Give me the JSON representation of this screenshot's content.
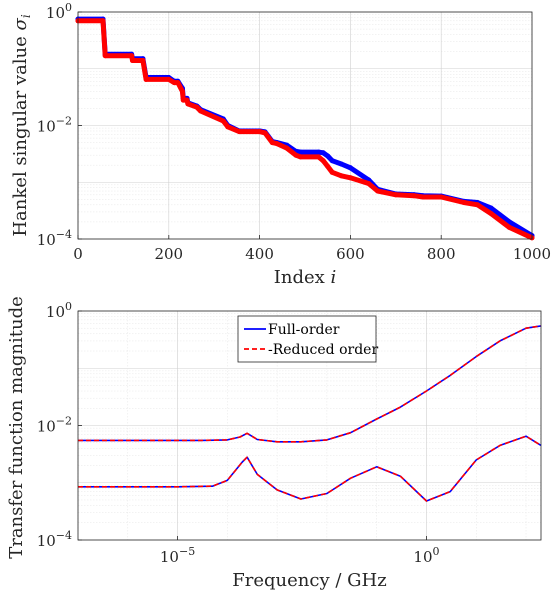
{
  "chart_data": [
    {
      "type": "scatter",
      "xlabel": "Index ",
      "xlabel_var": "i",
      "ylabel": "Hankel singular value ",
      "ylabel_var": "σ",
      "ylabel_sub": "i",
      "xlim": [
        0,
        1000
      ],
      "ylim": [
        0.0001,
        1
      ],
      "yscale": "log",
      "grid": true,
      "xticks": [
        0,
        200,
        400,
        600,
        800,
        1000
      ],
      "xtick_labels": [
        "0",
        "200",
        "400",
        "600",
        "800",
        "1000"
      ],
      "ytick_labels": [
        {
          "value": 1,
          "base": "10",
          "exp": "0"
        },
        {
          "value": 0.01,
          "base": "10",
          "exp": "−2"
        },
        {
          "value": 0.0001,
          "base": "10",
          "exp": "−4"
        }
      ],
      "series": [
        {
          "name": "Full-order",
          "color": "#0000ff",
          "x": [
            0,
            55,
            60,
            118,
            120,
            143,
            150,
            200,
            212,
            220,
            230,
            232,
            240,
            242,
            262,
            270,
            320,
            330,
            355,
            400,
            412,
            428,
            438,
            460,
            480,
            490,
            530,
            540,
            550,
            560,
            580,
            600,
            640,
            660,
            700,
            740,
            760,
            800,
            850,
            880,
            910,
            950,
            1000
          ],
          "y": [
            0.75,
            0.75,
            0.18,
            0.18,
            0.15,
            0.15,
            0.07,
            0.07,
            0.06,
            0.06,
            0.045,
            0.03,
            0.03,
            0.025,
            0.022,
            0.019,
            0.013,
            0.01,
            0.008,
            0.008,
            0.0077,
            0.0052,
            0.005,
            0.0045,
            0.0035,
            0.0034,
            0.0034,
            0.0033,
            0.0029,
            0.0024,
            0.0021,
            0.0018,
            0.0011,
            0.00075,
            0.00062,
            0.0006,
            0.00058,
            0.00057,
            0.00046,
            0.00044,
            0.00035,
            0.0002,
            0.000115
          ]
        },
        {
          "name": "Reduced order",
          "color": "#ff0000",
          "x": [
            0,
            55,
            60,
            118,
            120,
            143,
            150,
            200,
            212,
            220,
            230,
            232,
            240,
            242,
            262,
            270,
            320,
            330,
            355,
            400,
            412,
            428,
            438,
            460,
            480,
            490,
            530,
            540,
            550,
            560,
            580,
            600,
            640,
            660,
            700,
            740,
            760,
            800,
            850,
            880,
            910,
            950,
            1000
          ],
          "y": [
            0.7,
            0.7,
            0.17,
            0.17,
            0.14,
            0.14,
            0.065,
            0.065,
            0.057,
            0.057,
            0.04,
            0.028,
            0.028,
            0.024,
            0.021,
            0.018,
            0.012,
            0.0095,
            0.0078,
            0.0078,
            0.0074,
            0.005,
            0.0048,
            0.004,
            0.003,
            0.0028,
            0.0028,
            0.0024,
            0.0019,
            0.0015,
            0.0013,
            0.0012,
            0.00095,
            0.0007,
            0.0006,
            0.00058,
            0.00055,
            0.00055,
            0.00044,
            0.0004,
            0.00028,
            0.00016,
            0.000105
          ]
        }
      ]
    },
    {
      "type": "line",
      "xlabel": "Frequency / GHz",
      "ylabel": "Transfer function magnitude",
      "xscale": "log",
      "yscale": "log",
      "xlim": [
        1e-07,
        200
      ],
      "ylim": [
        0.0001,
        1
      ],
      "grid": true,
      "xtick_labels": [
        {
          "value": 1e-05,
          "base": "10",
          "exp": "−5"
        },
        {
          "value": 1,
          "base": "10",
          "exp": "0"
        }
      ],
      "ytick_labels": [
        {
          "value": 1,
          "base": "10",
          "exp": "0"
        },
        {
          "value": 0.01,
          "base": "10",
          "exp": "−2"
        },
        {
          "value": 0.0001,
          "base": "10",
          "exp": "−4"
        }
      ],
      "legend": {
        "placement": "top-center",
        "entries": [
          {
            "label": "Full-order",
            "color": "#0000ff",
            "style": "solid"
          },
          {
            "label": "-Reduced order",
            "color": "#ff0000",
            "style": "dashed"
          }
        ]
      },
      "series": [
        {
          "name": "Full-order",
          "color": "#0000ff",
          "groups": [
            {
              "x": [
                1e-07,
                1e-06,
                3e-05,
                0.0001,
                0.00018,
                0.00025,
                0.0004,
                0.001,
                0.003,
                0.01,
                0.03,
                0.1,
                0.3,
                1,
                3,
                10,
                30,
                100,
                200
              ],
              "y": [
                0.0055,
                0.0055,
                0.0055,
                0.0056,
                0.0063,
                0.0073,
                0.0057,
                0.0052,
                0.0052,
                0.0056,
                0.0075,
                0.013,
                0.021,
                0.04,
                0.075,
                0.16,
                0.3,
                0.5,
                0.55
              ]
            },
            {
              "x": [
                1e-07,
                1e-06,
                1e-05,
                5e-05,
                0.0001,
                0.0002,
                0.00025,
                0.0004,
                0.001,
                0.003,
                0.01,
                0.03,
                0.1,
                0.3,
                1,
                3,
                10,
                30,
                100,
                200
              ],
              "y": [
                0.00085,
                0.00085,
                0.00085,
                0.00087,
                0.0011,
                0.0023,
                0.0028,
                0.0014,
                0.00075,
                0.00052,
                0.00065,
                0.0012,
                0.0019,
                0.0013,
                0.00048,
                0.0007,
                0.0025,
                0.0045,
                0.0065,
                0.0045
              ]
            }
          ]
        },
        {
          "name": "Reduced order",
          "color": "#ff0000",
          "groups": [
            {
              "x": [
                1e-07,
                1e-06,
                3e-05,
                0.0001,
                0.00018,
                0.00025,
                0.0004,
                0.001,
                0.003,
                0.01,
                0.03,
                0.1,
                0.3,
                1,
                3,
                10,
                30,
                100,
                200
              ],
              "y": [
                0.0055,
                0.0055,
                0.0055,
                0.0056,
                0.0063,
                0.0073,
                0.0057,
                0.0052,
                0.0052,
                0.0056,
                0.0075,
                0.013,
                0.021,
                0.04,
                0.075,
                0.16,
                0.3,
                0.5,
                0.55
              ]
            },
            {
              "x": [
                1e-07,
                1e-06,
                1e-05,
                5e-05,
                0.0001,
                0.0002,
                0.00025,
                0.0004,
                0.001,
                0.003,
                0.01,
                0.03,
                0.1,
                0.3,
                1,
                3,
                10,
                30,
                100,
                200
              ],
              "y": [
                0.00085,
                0.00085,
                0.00085,
                0.00087,
                0.0011,
                0.0023,
                0.0028,
                0.0014,
                0.00075,
                0.00052,
                0.00065,
                0.0012,
                0.0019,
                0.0013,
                0.00048,
                0.0007,
                0.0025,
                0.0045,
                0.0065,
                0.0045
              ]
            }
          ]
        }
      ]
    }
  ]
}
